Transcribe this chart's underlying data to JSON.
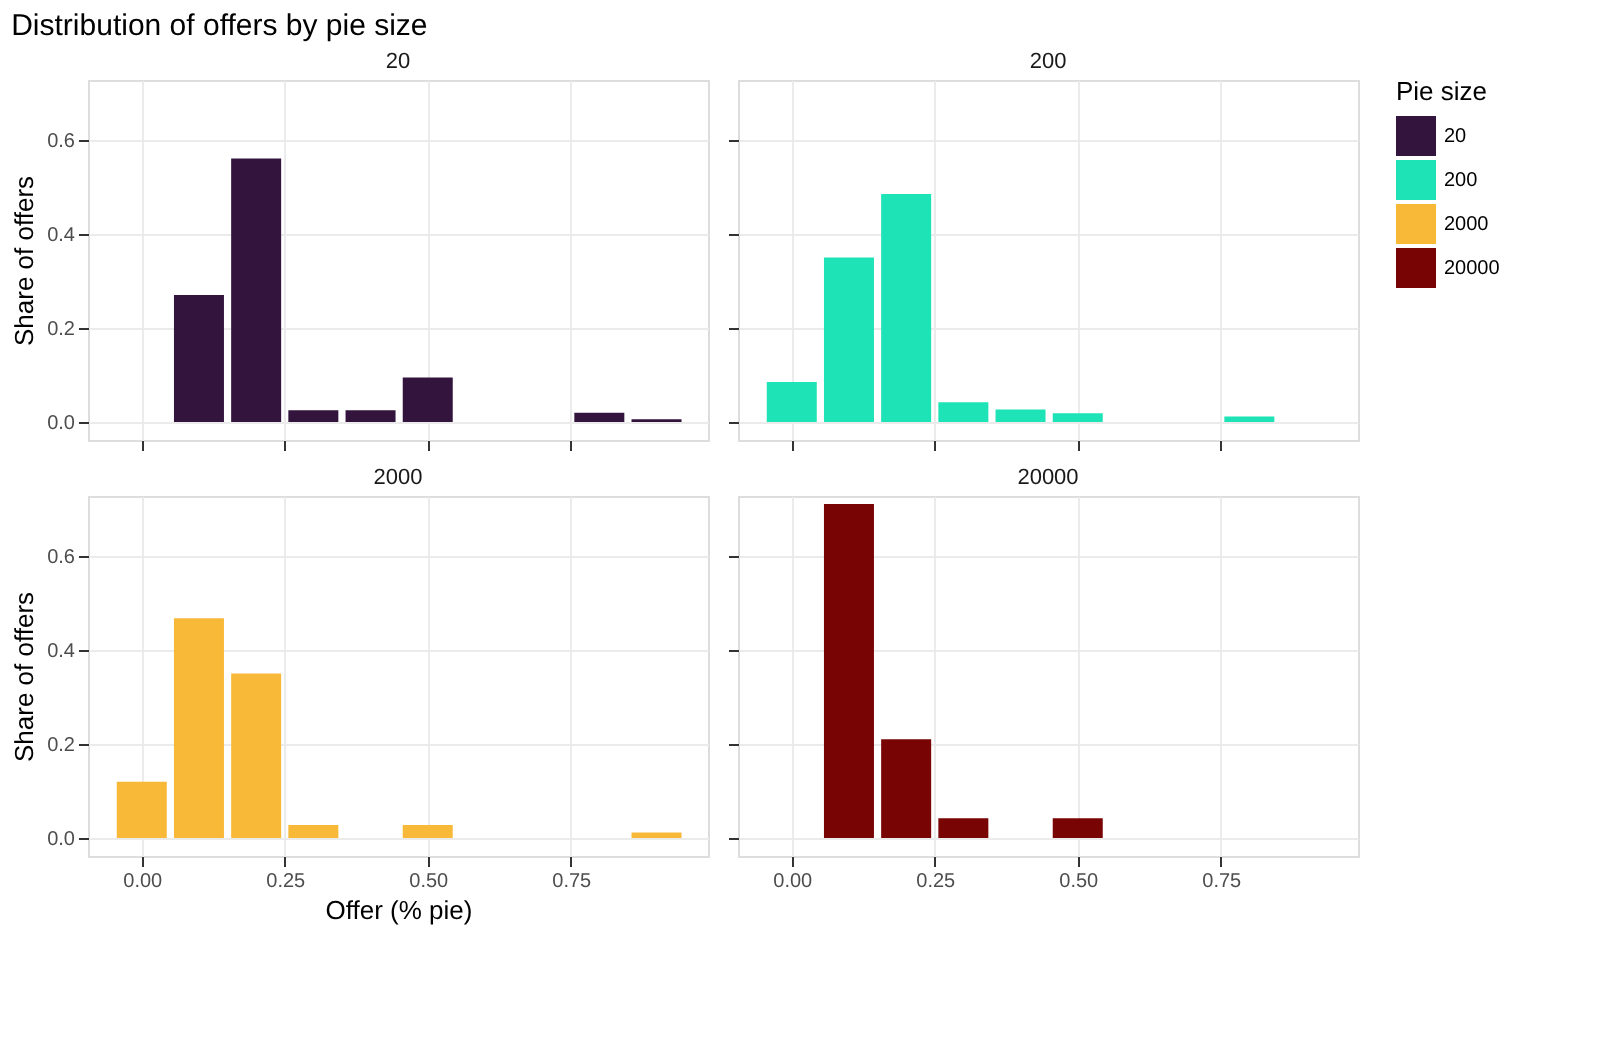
{
  "chart_data": [
    {
      "type": "bar",
      "title": "20",
      "annotations": [
        "Distribution of offers by pie size"
      ],
      "ylabel": "Share of offers",
      "legend_title": "Pie size",
      "legend": "right",
      "grid": true,
      "tick_labels": "y",
      "xlim": [
        -0.094,
        0.99
      ],
      "ylim": [
        -0.038,
        0.727
      ],
      "xticks": [
        {
          "value": 0,
          "label": null
        },
        {
          "value": 0.25,
          "label": null
        },
        {
          "value": 0.5,
          "label": null
        },
        {
          "value": 0.75,
          "label": null
        }
      ],
      "yticks": [
        {
          "value": 0,
          "label": "0.0"
        },
        {
          "value": 0.2,
          "label": "0.2"
        },
        {
          "value": 0.4,
          "label": "0.4"
        },
        {
          "value": 0.6,
          "label": "0.6"
        }
      ],
      "series": [
        {
          "name": "20",
          "color": "#32143c",
          "x": [
            0.1,
            0.2,
            0.3,
            0.4,
            0.5,
            0.8,
            0.9
          ],
          "values": [
            0.27,
            0.56,
            0.025,
            0.025,
            0.095,
            0.02,
            0.006
          ]
        }
      ]
    },
    {
      "type": "bar",
      "title": "200",
      "grid": true,
      "tick_labels": false,
      "xlim": [
        -0.094,
        0.99
      ],
      "ylim": [
        -0.038,
        0.727
      ],
      "xticks": [
        {
          "value": 0,
          "label": null
        },
        {
          "value": 0.25,
          "label": null
        },
        {
          "value": 0.5,
          "label": null
        },
        {
          "value": 0.75,
          "label": null
        }
      ],
      "yticks": [
        {
          "value": 0,
          "label": null
        },
        {
          "value": 0.2,
          "label": null
        },
        {
          "value": 0.4,
          "label": null
        },
        {
          "value": 0.6,
          "label": null
        }
      ],
      "series": [
        {
          "name": "200",
          "color": "#1de3b6",
          "x": [
            0,
            0.1,
            0.2,
            0.3,
            0.4,
            0.5,
            0.8
          ],
          "values": [
            0.085,
            0.35,
            0.485,
            0.042,
            0.027,
            0.019,
            0.012
          ]
        }
      ]
    },
    {
      "type": "bar",
      "title": "2000",
      "xlabel": "Offer (% pie)",
      "ylabel": "Share of offers",
      "grid": true,
      "xlim": [
        -0.094,
        0.99
      ],
      "ylim": [
        -0.038,
        0.727
      ],
      "xticks": [
        {
          "value": 0,
          "label": "0.00"
        },
        {
          "value": 0.25,
          "label": "0.25"
        },
        {
          "value": 0.5,
          "label": "0.50"
        },
        {
          "value": 0.75,
          "label": "0.75"
        }
      ],
      "yticks": [
        {
          "value": 0,
          "label": "0.0"
        },
        {
          "value": 0.2,
          "label": "0.2"
        },
        {
          "value": 0.4,
          "label": "0.4"
        },
        {
          "value": 0.6,
          "label": "0.6"
        }
      ],
      "series": [
        {
          "name": "2000",
          "color": "#f8b938",
          "x": [
            0,
            0.1,
            0.2,
            0.3,
            0.5,
            0.9
          ],
          "values": [
            0.12,
            0.467,
            0.35,
            0.028,
            0.028,
            0.012
          ]
        }
      ]
    },
    {
      "type": "bar",
      "title": "20000",
      "grid": true,
      "tick_labels": "x",
      "xlim": [
        -0.094,
        0.99
      ],
      "ylim": [
        -0.038,
        0.727
      ],
      "xticks": [
        {
          "value": 0,
          "label": "0.00"
        },
        {
          "value": 0.25,
          "label": "0.25"
        },
        {
          "value": 0.5,
          "label": "0.50"
        },
        {
          "value": 0.75,
          "label": "0.75"
        }
      ],
      "yticks": [
        {
          "value": 0,
          "label": null
        },
        {
          "value": 0.2,
          "label": null
        },
        {
          "value": 0.4,
          "label": null
        },
        {
          "value": 0.6,
          "label": null
        }
      ],
      "series": [
        {
          "name": "20000",
          "color": "#780404",
          "x": [
            0.1,
            0.2,
            0.3,
            0.5
          ],
          "values": [
            0.71,
            0.21,
            0.042,
            0.042
          ]
        }
      ]
    }
  ]
}
